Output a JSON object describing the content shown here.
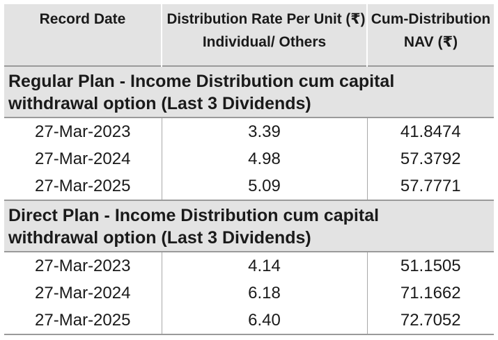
{
  "table": {
    "headers": {
      "record_date": "Record Date",
      "rate_line1": "Distribution Rate Per Unit (₹)",
      "rate_line2": "Individual/ Others",
      "nav_line1": "Cum-Distribution",
      "nav_line2": "NAV (₹)"
    },
    "sections": [
      {
        "title_line1": "Regular Plan - Income Distribution cum capital",
        "title_line2": "withdrawal option (Last 3 Dividends)",
        "rows": [
          {
            "date": "27-Mar-2023",
            "rate": "3.39",
            "nav": "41.8474"
          },
          {
            "date": "27-Mar-2024",
            "rate": "4.98",
            "nav": "57.3792"
          },
          {
            "date": "27-Mar-2025",
            "rate": "5.09",
            "nav": "57.7771"
          }
        ]
      },
      {
        "title_line1": "Direct Plan - Income Distribution cum capital",
        "title_line2": "withdrawal option (Last 3 Dividends)",
        "rows": [
          {
            "date": "27-Mar-2023",
            "rate": "4.14",
            "nav": "51.1505"
          },
          {
            "date": "27-Mar-2024",
            "rate": "6.18",
            "nav": "71.1662"
          },
          {
            "date": "27-Mar-2025",
            "rate": "6.40",
            "nav": "72.7052"
          }
        ]
      }
    ]
  }
}
